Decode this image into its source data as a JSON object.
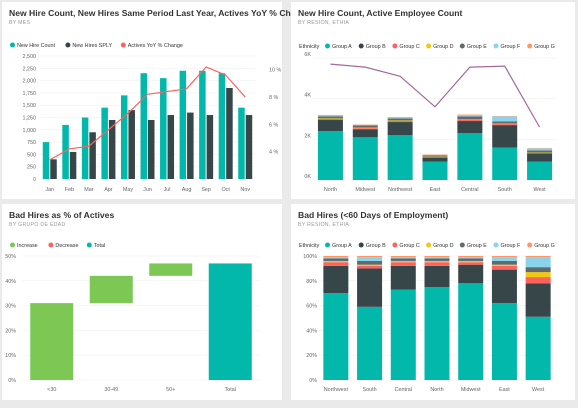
{
  "colors": {
    "teal": "#01b8aa",
    "dark": "#374649",
    "red": "#fd625e",
    "yellow": "#f2c80f",
    "gray": "#5f6b6d",
    "lightblue": "#8ad4eb",
    "orange": "#fe9666",
    "purple": "#a66999",
    "green": "#7dc855"
  },
  "tiles": [
    {
      "title": "New Hire Count, New Hires Same Period Last Year, Actives YoY % Change",
      "subtitle": "BY MES"
    },
    {
      "title": "New Hire Count, Active Employee Count",
      "subtitle": "BY RESION, ETHIA"
    },
    {
      "title": "Bad Hires as % of Actives",
      "subtitle": "BY GRUPO DE EDAD"
    },
    {
      "title": "Bad Hires (<60 Days of Employment)",
      "subtitle": "BY RESION, ETHIA"
    }
  ],
  "chart_data": [
    {
      "type": "bar",
      "legend": [
        "New Hire Count",
        "New Hires SPLY",
        "Actives YoY % Change"
      ],
      "categories": [
        "Jan",
        "Feb",
        "Mar",
        "Apr",
        "May",
        "Jun",
        "Jul",
        "Aug",
        "Sep",
        "Oct",
        "Nov"
      ],
      "series": [
        {
          "name": "New Hire Count",
          "values": [
            750,
            1100,
            1250,
            1450,
            1700,
            2150,
            2050,
            2200,
            2200,
            2150,
            1450
          ]
        },
        {
          "name": "New Hires SPLY",
          "values": [
            400,
            550,
            950,
            1200,
            1400,
            1200,
            1300,
            1350,
            1300,
            1850,
            1300
          ]
        },
        {
          "name": "Actives YoY % Change",
          "values": [
            3.4,
            4.2,
            4.4,
            5.6,
            6.8,
            8.2,
            8.4,
            8.6,
            10.2,
            9.6,
            8.0
          ]
        }
      ],
      "ylim": [
        0,
        2500
      ],
      "yticks": [
        "0",
        "250",
        "500",
        "750",
        "1,000",
        "1,250",
        "1,500",
        "1,750",
        "2,000",
        "2,250",
        "2,500"
      ],
      "y2lim": [
        2,
        11
      ],
      "y2ticks": [
        "4 %",
        "6 %",
        "8 %",
        "10 %"
      ]
    },
    {
      "type": "bar",
      "stacked": true,
      "legend_title": "Ethnicity",
      "legend": [
        "Group A",
        "Group B",
        "Group C",
        "Group D",
        "Group E",
        "Group F",
        "Group G"
      ],
      "categories": [
        "North",
        "Midwest",
        "Northwest",
        "East",
        "Central",
        "South",
        "West"
      ],
      "series": [
        {
          "name": "Group A",
          "values": [
            2400,
            2100,
            2200,
            900,
            2300,
            1600,
            900
          ]
        },
        {
          "name": "Group B",
          "values": [
            550,
            400,
            650,
            200,
            600,
            1100,
            400
          ]
        },
        {
          "name": "Group C",
          "values": [
            50,
            50,
            50,
            30,
            50,
            50,
            30
          ]
        },
        {
          "name": "Group D",
          "values": [
            30,
            30,
            30,
            20,
            30,
            30,
            20
          ]
        },
        {
          "name": "Group E",
          "values": [
            100,
            100,
            100,
            60,
            150,
            100,
            100
          ]
        },
        {
          "name": "Group F",
          "values": [
            40,
            30,
            50,
            30,
            70,
            250,
            100
          ]
        },
        {
          "name": "Group G",
          "values": [
            30,
            20,
            20,
            20,
            20,
            20,
            20
          ]
        }
      ],
      "line": [
        5700,
        5550,
        5100,
        3600,
        5550,
        5600,
        2600
      ],
      "ylim": [
        0,
        6000
      ],
      "yticks": [
        "0K",
        "2K",
        "4K",
        "6K"
      ]
    },
    {
      "type": "bar",
      "waterfall": true,
      "legend": [
        "Increase",
        "Decrease",
        "Total"
      ],
      "categories": [
        "<30",
        "30-49",
        "50+",
        "Total"
      ],
      "values": [
        31,
        11,
        5,
        47
      ],
      "ylim": [
        0,
        50
      ],
      "yticks": [
        "0%",
        "10%",
        "20%",
        "30%",
        "40%",
        "50%"
      ]
    },
    {
      "type": "bar",
      "stacked": true,
      "legend_title": "Ethnicity",
      "legend": [
        "Group A",
        "Group B",
        "Group C",
        "Group D",
        "Group E",
        "Group F",
        "Group G"
      ],
      "categories": [
        "Northwest",
        "South",
        "Central",
        "North",
        "Midwest",
        "East",
        "West"
      ],
      "series": [
        {
          "name": "Group A",
          "values": [
            70,
            59,
            73,
            75,
            78,
            62,
            51
          ]
        },
        {
          "name": "Group B",
          "values": [
            22,
            31,
            19,
            17,
            15,
            27,
            27
          ]
        },
        {
          "name": "Group C",
          "values": [
            3,
            2,
            3,
            3,
            2,
            3,
            5
          ]
        },
        {
          "name": "Group D",
          "values": [
            1,
            1,
            1,
            1,
            1,
            1,
            4
          ]
        },
        {
          "name": "Group E",
          "values": [
            2,
            3,
            2,
            2,
            2,
            3,
            4
          ]
        },
        {
          "name": "Group F",
          "values": [
            1,
            3,
            1,
            1,
            1,
            3,
            8
          ]
        },
        {
          "name": "Group G",
          "values": [
            1,
            1,
            1,
            1,
            1,
            1,
            1
          ]
        }
      ],
      "ylim": [
        0,
        100
      ],
      "yticks": [
        "0%",
        "20%",
        "40%",
        "60%",
        "80%",
        "100%"
      ]
    }
  ]
}
